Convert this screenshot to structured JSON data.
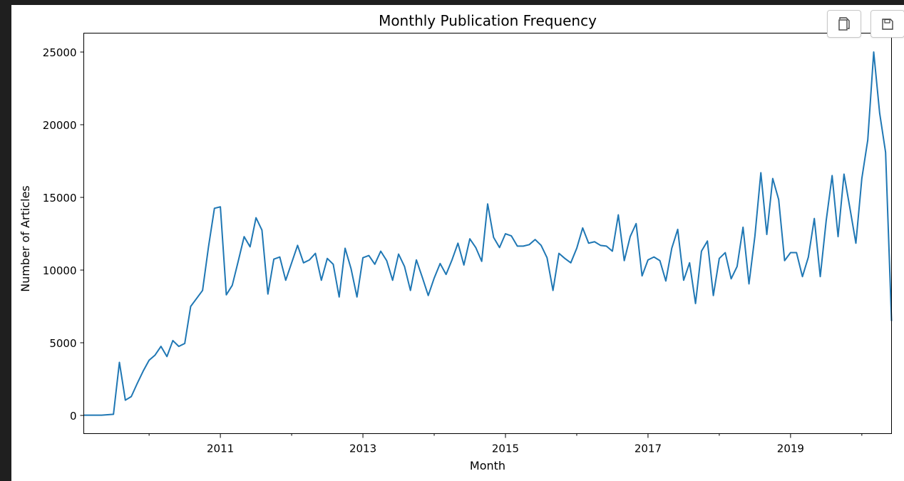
{
  "toolbar": {
    "copy_icon": "copy-icon",
    "save_icon": "save-icon"
  },
  "chart_data": {
    "type": "line",
    "title": "Monthly Publication Frequency",
    "xlabel": "Month",
    "ylabel": "Number of Articles",
    "xlim": [
      "2009-02",
      "2020-06"
    ],
    "ylim": [
      -1250,
      26300
    ],
    "x_ticks": [
      "2011",
      "2013",
      "2015",
      "2017",
      "2019"
    ],
    "y_ticks": [
      0,
      5000,
      10000,
      15000,
      20000,
      25000
    ],
    "grid": false,
    "line_color": "#1f77b4",
    "series": [
      {
        "x": [
          "2009-02",
          "2009-03",
          "2009-04",
          "2009-05",
          "2009-06",
          "2009-07",
          "2009-08",
          "2009-09",
          "2009-10",
          "2009-11",
          "2009-12",
          "2010-01",
          "2010-02",
          "2010-03",
          "2010-04",
          "2010-05",
          "2010-06",
          "2010-07",
          "2010-08",
          "2010-09",
          "2010-10",
          "2010-11",
          "2010-12",
          "2011-01",
          "2011-02",
          "2011-03",
          "2011-04",
          "2011-05",
          "2011-06",
          "2011-07",
          "2011-08",
          "2011-09",
          "2011-10",
          "2011-11",
          "2011-12",
          "2012-01",
          "2012-02",
          "2012-03",
          "2012-04",
          "2012-05",
          "2012-06",
          "2012-07",
          "2012-08",
          "2012-09",
          "2012-10",
          "2012-11",
          "2012-12",
          "2013-01",
          "2013-02",
          "2013-03",
          "2013-04",
          "2013-05",
          "2013-06",
          "2013-07",
          "2013-08",
          "2013-09",
          "2013-10",
          "2013-11",
          "2013-12",
          "2014-01",
          "2014-02",
          "2014-03",
          "2014-04",
          "2014-05",
          "2014-06",
          "2014-07",
          "2014-08",
          "2014-09",
          "2014-10",
          "2014-11",
          "2014-12",
          "2015-01",
          "2015-02",
          "2015-03",
          "2015-04",
          "2015-05",
          "2015-06",
          "2015-07",
          "2015-08",
          "2015-09",
          "2015-10",
          "2015-11",
          "2015-12",
          "2016-01",
          "2016-02",
          "2016-03",
          "2016-04",
          "2016-05",
          "2016-06",
          "2016-07",
          "2016-08",
          "2016-09",
          "2016-10",
          "2016-11",
          "2016-12",
          "2017-01",
          "2017-02",
          "2017-03",
          "2017-04",
          "2017-05",
          "2017-06",
          "2017-07",
          "2017-08",
          "2017-09",
          "2017-10",
          "2017-11",
          "2017-12",
          "2018-01",
          "2018-02",
          "2018-03",
          "2018-04",
          "2018-05",
          "2018-06",
          "2018-07",
          "2018-08",
          "2018-09",
          "2018-10",
          "2018-11",
          "2018-12",
          "2019-01",
          "2019-02",
          "2019-03",
          "2019-04",
          "2019-05",
          "2019-06",
          "2019-07",
          "2019-08",
          "2019-09",
          "2019-10",
          "2019-11",
          "2019-12",
          "2020-01",
          "2020-02",
          "2020-03",
          "2020-04",
          "2020-05",
          "2020-06"
        ],
        "values": [
          20,
          20,
          20,
          20,
          50,
          80,
          3650,
          1050,
          1300,
          2200,
          3050,
          3800,
          4150,
          4750,
          4050,
          5150,
          4750,
          4950,
          7500,
          8050,
          8600,
          11600,
          14250,
          14350,
          8300,
          8950,
          10600,
          12300,
          11600,
          13600,
          12750,
          8350,
          10750,
          10900,
          9300,
          10500,
          11700,
          10500,
          10700,
          11150,
          9300,
          10800,
          10400,
          8150,
          11500,
          10100,
          8150,
          10850,
          11000,
          10400,
          11300,
          10650,
          9300,
          11100,
          10250,
          8600,
          10700,
          9500,
          8250,
          9450,
          10450,
          9700,
          10700,
          11850,
          10350,
          12150,
          11550,
          10600,
          14550,
          12250,
          11550,
          12500,
          12350,
          11650,
          11650,
          11750,
          12100,
          11700,
          10850,
          8600,
          11150,
          10800,
          10500,
          11500,
          12900,
          11850,
          11950,
          11700,
          11650,
          11300,
          13800,
          10650,
          12300,
          13200,
          9600,
          10700,
          10900,
          10650,
          9250,
          11500,
          12800,
          9300,
          10500,
          7700,
          11300,
          12000,
          8250,
          10800,
          11200,
          9400,
          10250,
          12950,
          9050,
          12350,
          16700,
          12450,
          16300,
          14850,
          10650,
          11200,
          11200,
          9550,
          10900,
          13550,
          9550,
          13400,
          16500,
          12300,
          16600,
          14250,
          11850,
          16300,
          18950,
          25000,
          20800,
          18100,
          6500
        ]
      }
    ]
  }
}
